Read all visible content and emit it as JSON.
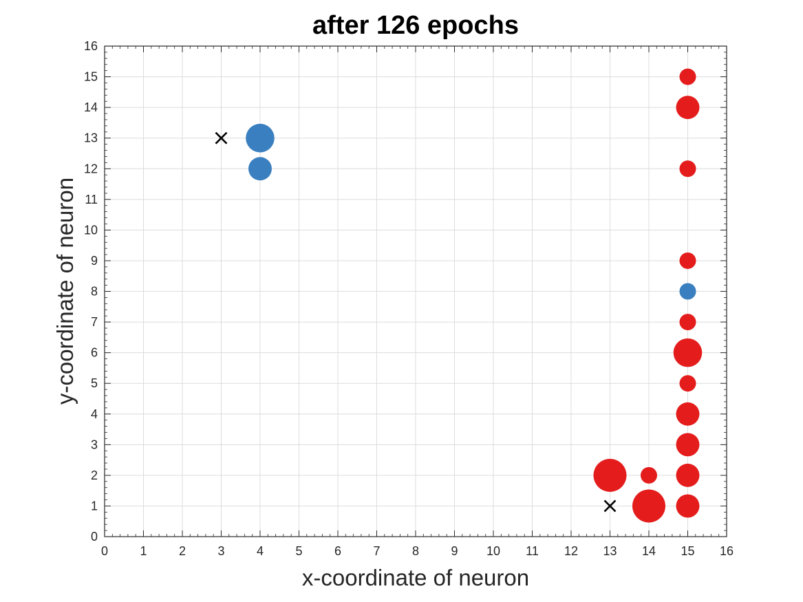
{
  "chart_data": {
    "type": "scatter",
    "title": "after 126 epochs",
    "xlabel": "x-coordinate of neuron",
    "ylabel": "y-coordinate of neuron",
    "xlim": [
      0,
      16
    ],
    "ylim": [
      0,
      16
    ],
    "xticks": [
      "0",
      "1",
      "2",
      "3",
      "4",
      "5",
      "6",
      "7",
      "8",
      "9",
      "10",
      "11",
      "12",
      "13",
      "14",
      "15",
      "16"
    ],
    "yticks": [
      "0",
      "1",
      "2",
      "3",
      "4",
      "5",
      "6",
      "7",
      "8",
      "9",
      "10",
      "11",
      "12",
      "13",
      "14",
      "15",
      "16"
    ],
    "grid": true,
    "minor_ticks": true,
    "colors": {
      "blue": "#3a7fbf",
      "red": "#e41c1c",
      "marker": "#000000"
    },
    "series": [
      {
        "color_key": "blue",
        "points": [
          {
            "x": 4,
            "y": 13,
            "size": 3
          },
          {
            "x": 4,
            "y": 12,
            "size": 2
          },
          {
            "x": 15,
            "y": 8,
            "size": 1
          }
        ]
      },
      {
        "color_key": "red",
        "points": [
          {
            "x": 15,
            "y": 15,
            "size": 1
          },
          {
            "x": 15,
            "y": 14,
            "size": 2
          },
          {
            "x": 15,
            "y": 12,
            "size": 1
          },
          {
            "x": 15,
            "y": 9,
            "size": 1
          },
          {
            "x": 15,
            "y": 7,
            "size": 1
          },
          {
            "x": 15,
            "y": 6,
            "size": 3
          },
          {
            "x": 15,
            "y": 5,
            "size": 1
          },
          {
            "x": 15,
            "y": 4,
            "size": 2
          },
          {
            "x": 15,
            "y": 3,
            "size": 2
          },
          {
            "x": 15,
            "y": 2,
            "size": 2
          },
          {
            "x": 15,
            "y": 1,
            "size": 2
          },
          {
            "x": 14,
            "y": 2,
            "size": 1
          },
          {
            "x": 14,
            "y": 1,
            "size": 4
          },
          {
            "x": 13,
            "y": 2,
            "size": 4
          }
        ]
      }
    ],
    "centers": [
      {
        "x": 3,
        "y": 13
      },
      {
        "x": 13,
        "y": 1
      }
    ]
  }
}
